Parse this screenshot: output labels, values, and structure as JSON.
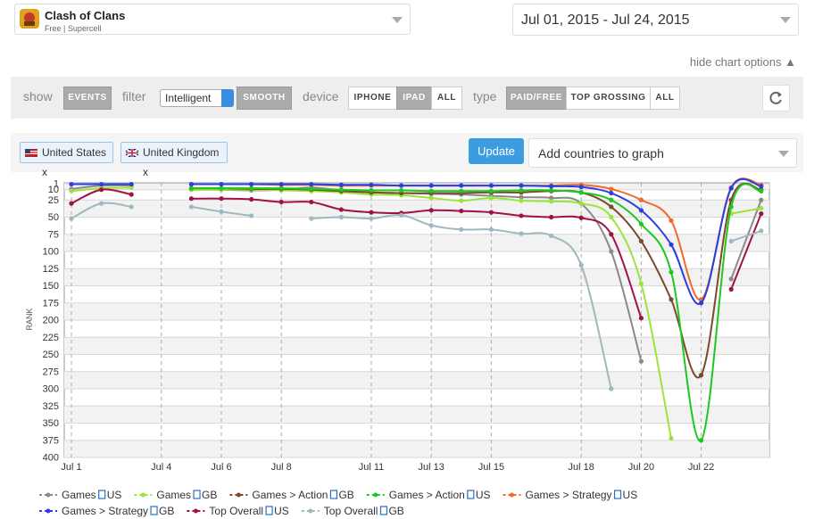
{
  "app": {
    "name": "Clash of Clans",
    "subtitle": "Free | Supercell"
  },
  "date_range": "Jul 01, 2015 - Jul 24, 2015",
  "options_toggle": "hide chart options ▲",
  "toolbar": {
    "show_label": "show",
    "events": "EVENTS",
    "filter_label": "filter",
    "filter_value": "Intelligent",
    "smooth": "SMOOTH",
    "device_label": "device",
    "devices": [
      "IPHONE",
      "IPAD",
      "ALL"
    ],
    "type_label": "type",
    "types": [
      "PAID/FREE",
      "TOP GROSSING",
      "ALL"
    ]
  },
  "countries": {
    "chips": [
      "United States x",
      "United Kingdom x"
    ],
    "update": "Update",
    "add_placeholder": "Add countries to graph"
  },
  "chart_data": {
    "type": "line",
    "y_label": "RANK",
    "y_inverted": true,
    "grid": true,
    "legend": "bottom",
    "categories": [
      "Jul 1",
      null,
      null,
      "Jul 4",
      null,
      "Jul 6",
      null,
      "Jul 8",
      null,
      null,
      "Jul 11",
      null,
      "Jul 13",
      null,
      "Jul 15",
      null,
      null,
      "Jul 18",
      null,
      "Jul 20",
      null,
      "Jul 22",
      null,
      null
    ],
    "ylim": [
      0,
      400
    ],
    "yticks": [
      1,
      10,
      25,
      50,
      75,
      100,
      125,
      150,
      175,
      200,
      225,
      250,
      275,
      300,
      325,
      350,
      375,
      400
    ],
    "series": [
      {
        "name": "Games",
        "country": "US",
        "color": "#8a8a8a",
        "values": [
          9,
          4,
          4,
          null,
          10,
          10,
          11,
          10,
          7,
          11,
          14,
          15,
          16,
          17,
          19,
          21,
          22,
          30,
          100,
          260,
          null,
          null,
          140,
          25
        ]
      },
      {
        "name": "Games",
        "country": "GB",
        "color": "#9be53a",
        "values": [
          12,
          8,
          7,
          null,
          10,
          10,
          10,
          11,
          12,
          14,
          17,
          18,
          22,
          26,
          22,
          26,
          27,
          30,
          50,
          147,
          372,
          null,
          45,
          37
        ]
      },
      {
        "name": "Games > Action",
        "country": "GB",
        "color": "#7b4a2b",
        "values": [
          null,
          null,
          null,
          null,
          8,
          8,
          9,
          9,
          10,
          12,
          14,
          15,
          15,
          15,
          14,
          14,
          12,
          14,
          35,
          85,
          170,
          280,
          25,
          10
        ]
      },
      {
        "name": "Games > Action",
        "country": "US",
        "color": "#1ec81e",
        "values": [
          null,
          null,
          null,
          null,
          8,
          8,
          8,
          8,
          9,
          10,
          11,
          11,
          12,
          12,
          12,
          11,
          11,
          14,
          25,
          60,
          130,
          375,
          35,
          12
        ]
      },
      {
        "name": "Games > Strategy",
        "country": "US",
        "color": "#f06a2c",
        "values": [
          null,
          null,
          null,
          null,
          2,
          2,
          2,
          3,
          3,
          4,
          4,
          4,
          4,
          4,
          4,
          4,
          4,
          3,
          9,
          25,
          55,
          170,
          7,
          3
        ]
      },
      {
        "name": "Games > Strategy",
        "country": "GB",
        "color": "#2b3fe0",
        "values": [
          2,
          2,
          2,
          null,
          2,
          2,
          2,
          2,
          2,
          3,
          3,
          4,
          4,
          4,
          4,
          4,
          5,
          6,
          15,
          40,
          90,
          175,
          8,
          5
        ]
      },
      {
        "name": "Top Overall",
        "country": "US",
        "color": "#a0104a",
        "values": [
          30,
          10,
          17,
          null,
          23,
          23,
          24,
          28,
          28,
          39,
          43,
          44,
          40,
          41,
          43,
          48,
          50,
          51,
          75,
          197,
          null,
          null,
          155,
          45
        ]
      },
      {
        "name": "Top Overall",
        "country": "GB",
        "color": "#9fb8bf",
        "values": [
          52,
          30,
          35,
          null,
          35,
          42,
          48,
          null,
          52,
          50,
          52,
          47,
          62,
          68,
          68,
          74,
          77,
          120,
          300,
          null,
          null,
          null,
          85,
          70
        ]
      }
    ]
  }
}
